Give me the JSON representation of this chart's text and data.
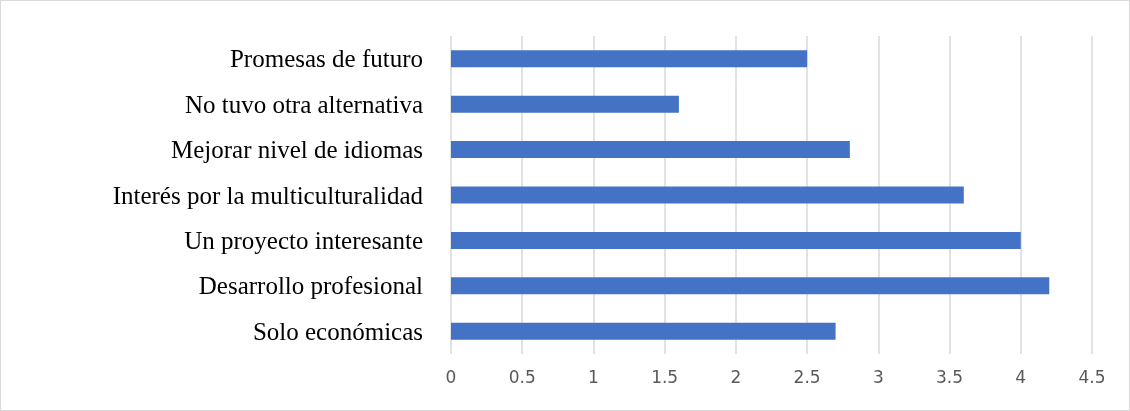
{
  "chart_data": {
    "type": "bar",
    "orientation": "horizontal",
    "categories": [
      "Promesas de futuro",
      "No tuvo otra alternativa",
      "Mejorar nivel de idiomas",
      "Interés por la multiculturalidad",
      "Un proyecto interesante",
      "Desarrollo profesional",
      "Solo económicas"
    ],
    "values": [
      2.5,
      1.6,
      2.8,
      3.6,
      4.0,
      4.2,
      2.7
    ],
    "color": "#4472c4",
    "xlim": [
      0,
      4.5
    ],
    "xticks": [
      0,
      0.5,
      1,
      1.5,
      2,
      2.5,
      3,
      3.5,
      4,
      4.5
    ],
    "grid": "x"
  }
}
